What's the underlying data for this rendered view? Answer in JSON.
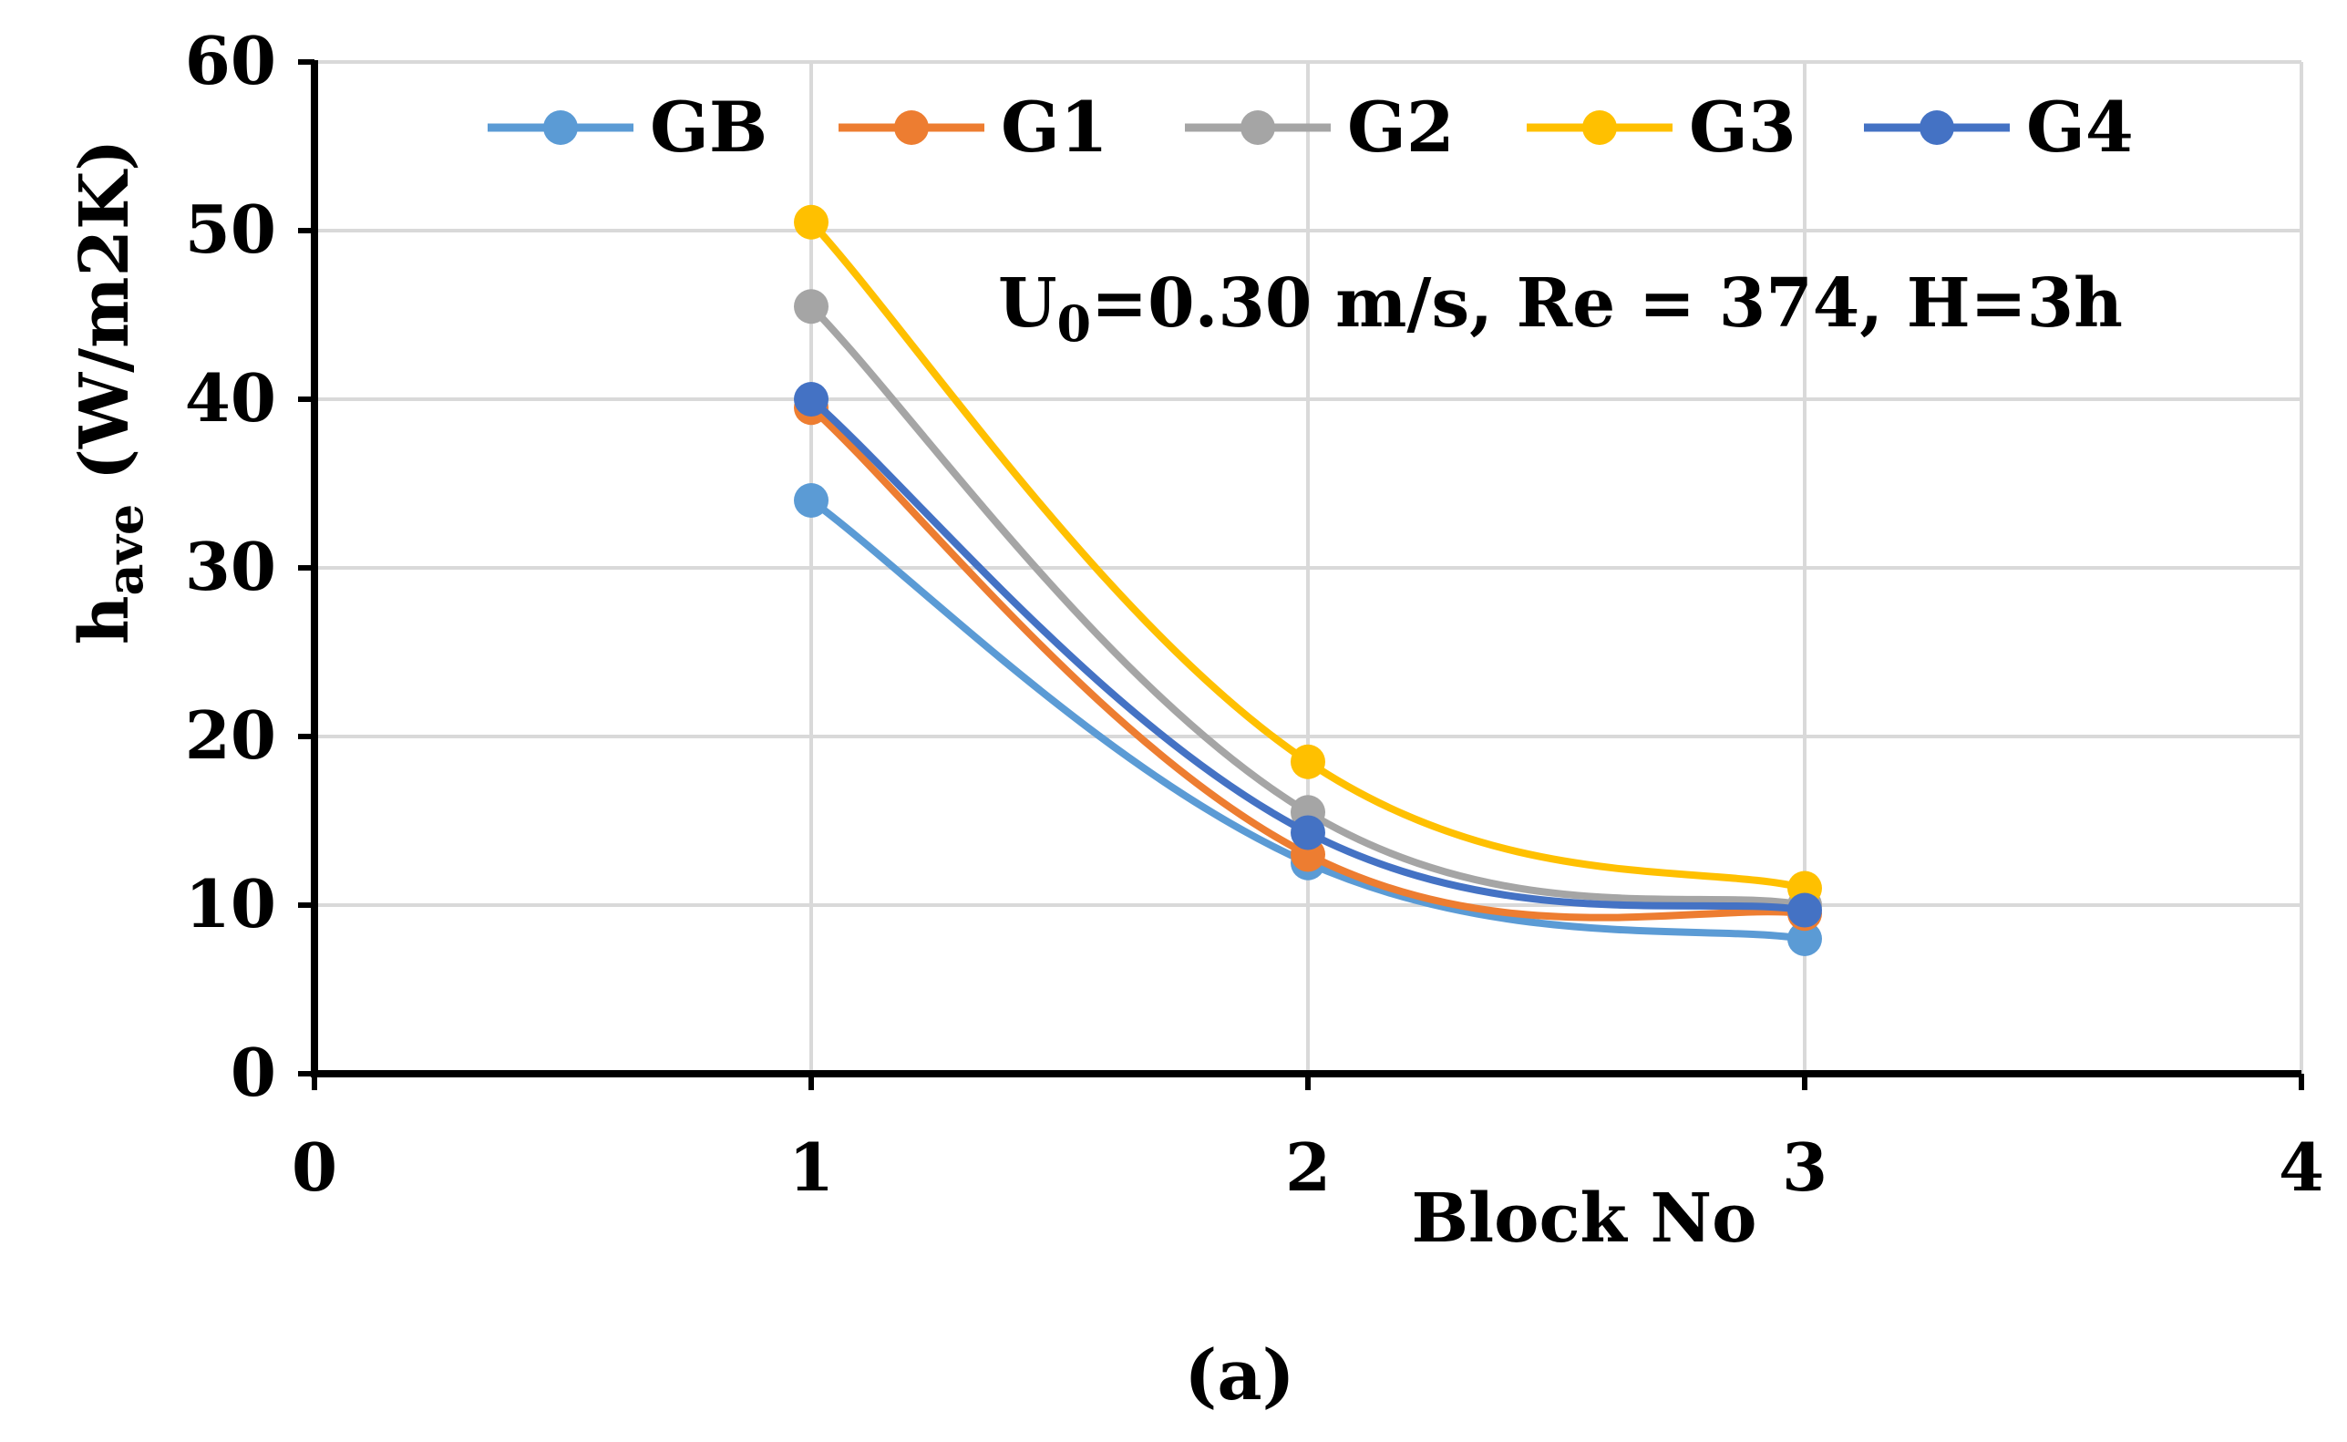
{
  "chart_data": {
    "type": "line",
    "title": "",
    "xlabel": "Block No",
    "ylabel": {
      "main": "h",
      "sub": "ave",
      "rest": " (W/m2K)"
    },
    "xlim": [
      0,
      4
    ],
    "ylim": [
      0,
      60
    ],
    "xticks": [
      0,
      1,
      2,
      3,
      4
    ],
    "yticks": [
      0,
      10,
      20,
      30,
      40,
      50,
      60
    ],
    "grid": true,
    "legend_position": "top",
    "x": [
      1,
      2,
      3
    ],
    "series": [
      {
        "name": "GB",
        "color": "#5B9BD5",
        "values": [
          34,
          12.5,
          8
        ]
      },
      {
        "name": "G1",
        "color": "#ED7D31",
        "values": [
          39.5,
          13,
          9.5
        ]
      },
      {
        "name": "G2",
        "color": "#A5A5A5",
        "values": [
          45.5,
          15.5,
          10
        ]
      },
      {
        "name": "G3",
        "color": "#FFC000",
        "values": [
          50.5,
          18.5,
          11
        ]
      },
      {
        "name": "G4",
        "color": "#4472C4",
        "values": [
          40,
          14.3,
          9.7
        ]
      }
    ],
    "annotation": {
      "u_main": "U",
      "u_sub": "0",
      "rest": "=0.30 m/s, Re = 374,  H=3h"
    },
    "caption": "(a)"
  }
}
